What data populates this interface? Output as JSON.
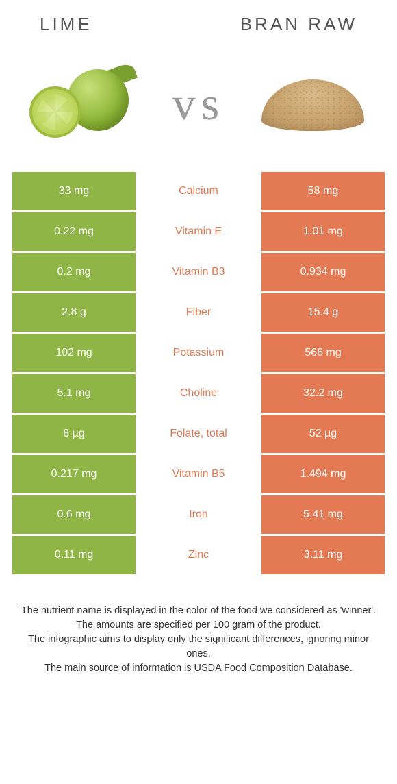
{
  "left": {
    "title": "Lime",
    "color": "#8fb547"
  },
  "right": {
    "title": "Bran raw",
    "color": "#e37a54"
  },
  "vs": "vs",
  "rows": [
    {
      "left": "33 mg",
      "label": "Calcium",
      "right": "58 mg",
      "winner": "right"
    },
    {
      "left": "0.22 mg",
      "label": "Vitamin E",
      "right": "1.01 mg",
      "winner": "right"
    },
    {
      "left": "0.2 mg",
      "label": "Vitamin B3",
      "right": "0.934 mg",
      "winner": "right"
    },
    {
      "left": "2.8 g",
      "label": "Fiber",
      "right": "15.4 g",
      "winner": "right"
    },
    {
      "left": "102 mg",
      "label": "Potassium",
      "right": "566 mg",
      "winner": "right"
    },
    {
      "left": "5.1 mg",
      "label": "Choline",
      "right": "32.2 mg",
      "winner": "right"
    },
    {
      "left": "8 µg",
      "label": "Folate, total",
      "right": "52 µg",
      "winner": "right"
    },
    {
      "left": "0.217 mg",
      "label": "Vitamin B5",
      "right": "1.494 mg",
      "winner": "right"
    },
    {
      "left": "0.6 mg",
      "label": "Iron",
      "right": "5.41 mg",
      "winner": "right"
    },
    {
      "left": "0.11 mg",
      "label": "Zinc",
      "right": "3.11 mg",
      "winner": "right"
    }
  ],
  "footnotes": [
    "The nutrient name is displayed in the color of the food we considered as 'winner'.",
    "The amounts are specified per 100 gram of the product.",
    "The infographic aims to display only the significant differences, ignoring minor ones.",
    "The main source of information is USDA Food Composition Database."
  ]
}
